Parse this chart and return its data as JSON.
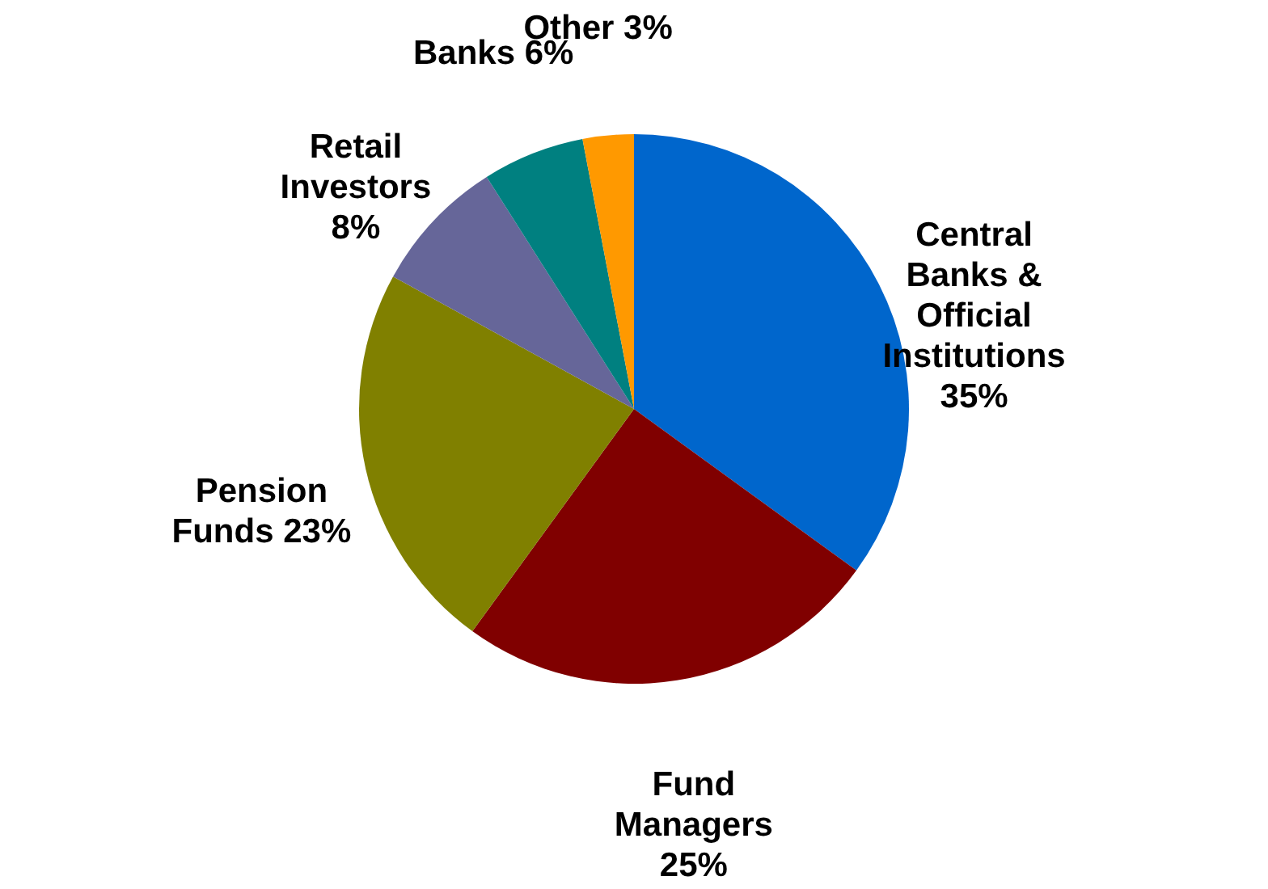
{
  "chart_data": {
    "type": "pie",
    "categories": [
      "Central Banks & Official Institutions",
      "Fund Managers",
      "Pension Funds",
      "Retail Investors",
      "Banks",
      "Other"
    ],
    "values": [
      35,
      25,
      23,
      8,
      6,
      3
    ],
    "colors": [
      "#0066cc",
      "#800000",
      "#808000",
      "#666699",
      "#008080",
      "#ff9900"
    ],
    "value_labels": [
      "35%",
      "25%",
      "23%",
      "8%",
      "6%",
      "3%"
    ]
  }
}
